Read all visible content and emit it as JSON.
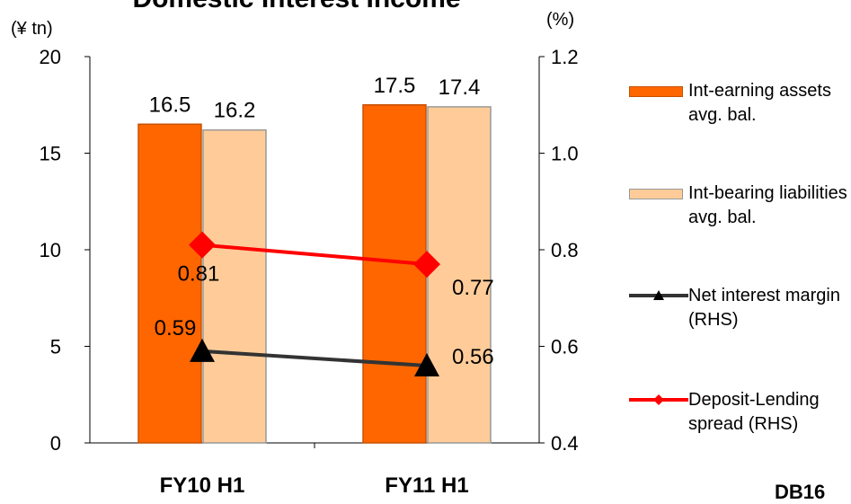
{
  "chart_data": {
    "type": "bar",
    "title": "Domestic Interest Income",
    "categories": [
      "FY10 H1",
      "FY11 H1"
    ],
    "left_axis": {
      "unit_label": "(¥ tn)",
      "ylim": [
        0,
        20
      ],
      "ticks": [
        "0",
        "5",
        "10",
        "15",
        "20"
      ]
    },
    "right_axis": {
      "unit_label": "(%)",
      "ylim": [
        0.4,
        1.2
      ],
      "ticks": [
        "0.4",
        "0.6",
        "0.8",
        "1.0",
        "1.2"
      ]
    },
    "series": [
      {
        "name": "Int-earning assets avg. bal.",
        "kind": "bar",
        "axis": "left",
        "color": "#ff6600",
        "values": [
          16.5,
          17.5
        ],
        "labels": [
          "16.5",
          "17.5"
        ]
      },
      {
        "name": "Int-bearing liabilities avg. bal.",
        "kind": "bar",
        "axis": "left",
        "color": "#ffcc99",
        "values": [
          16.2,
          17.4
        ],
        "labels": [
          "16.2",
          "17.4"
        ]
      },
      {
        "name": "Net interest margin (RHS)",
        "kind": "line",
        "marker": "triangle",
        "axis": "right",
        "color": "#333333",
        "values": [
          0.59,
          0.56
        ],
        "labels": [
          "0.59",
          "0.56"
        ]
      },
      {
        "name": "Deposit-Lending spread (RHS)",
        "kind": "line",
        "marker": "diamond",
        "axis": "right",
        "color": "#ff0000",
        "values": [
          0.81,
          0.77
        ],
        "labels": [
          "0.81",
          "0.77"
        ]
      }
    ],
    "grid": false,
    "legend_position": "right"
  },
  "footer": {
    "code": "DB16"
  }
}
